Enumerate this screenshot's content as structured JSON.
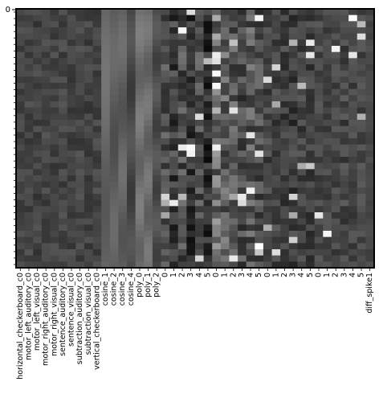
{
  "chart_data": {
    "type": "heatmap",
    "title": "",
    "xlabel": "",
    "ylabel": "",
    "colormap": "gray",
    "y_tick_labels": [
      "0"
    ],
    "y_minor_tick_count": 40,
    "x": [
      "horizontal_checkerboard_c0",
      "motor_left_auditory_c0",
      "motor_left_visual_c0",
      "motor_right_auditory_c0",
      "motor_right_visual_c0",
      "sentence_auditory_c0",
      "sentence_visual_c0",
      "subtraction_auditory_c0",
      "subtraction_visual_c0",
      "vertical_checkerboard_c0",
      "cosine_1",
      "cosine_2",
      "cosine_3",
      "cosine_4",
      "poly_0",
      "poly_1",
      "poly_2",
      "0",
      "1",
      "2",
      "3",
      "4",
      "5",
      "0",
      "1",
      "2",
      "3",
      "4",
      "5",
      "0",
      "1",
      "2",
      "3",
      "4",
      "5",
      "0",
      "1",
      "2",
      "3",
      "4",
      "5",
      "diff_spike1"
    ],
    "column_profile": [
      {
        "base": 0.26,
        "amp": 0.07,
        "spike": 0.0
      },
      {
        "base": 0.27,
        "amp": 0.07,
        "spike": 0.0
      },
      {
        "base": 0.26,
        "amp": 0.07,
        "spike": 0.0
      },
      {
        "base": 0.27,
        "amp": 0.07,
        "spike": 0.0
      },
      {
        "base": 0.26,
        "amp": 0.07,
        "spike": 0.0
      },
      {
        "base": 0.27,
        "amp": 0.07,
        "spike": 0.0
      },
      {
        "base": 0.26,
        "amp": 0.07,
        "spike": 0.0
      },
      {
        "base": 0.27,
        "amp": 0.07,
        "spike": 0.0
      },
      {
        "base": 0.26,
        "amp": 0.07,
        "spike": 0.0
      },
      {
        "base": 0.27,
        "amp": 0.07,
        "spike": 0.0
      },
      {
        "base": 0.4,
        "amp": 0.03,
        "spike": 0.0
      },
      {
        "base": 0.36,
        "amp": 0.03,
        "spike": 0.0
      },
      {
        "base": 0.38,
        "amp": 0.03,
        "spike": 0.0
      },
      {
        "base": 0.28,
        "amp": 0.03,
        "spike": 0.0
      },
      {
        "base": 0.44,
        "amp": 0.03,
        "spike": 0.0
      },
      {
        "base": 0.42,
        "amp": 0.03,
        "spike": 0.0
      },
      {
        "base": 0.3,
        "amp": 0.03,
        "spike": 0.0
      },
      {
        "base": 0.32,
        "amp": 0.14,
        "spike": 0.05
      },
      {
        "base": 0.25,
        "amp": 0.16,
        "spike": 0.05
      },
      {
        "base": 0.3,
        "amp": 0.16,
        "spike": 0.05
      },
      {
        "base": 0.2,
        "amp": 0.14,
        "spike": 0.05
      },
      {
        "base": 0.3,
        "amp": 0.16,
        "spike": 0.05
      },
      {
        "base": 0.18,
        "amp": 0.14,
        "spike": 0.05
      },
      {
        "base": 0.42,
        "amp": 0.2,
        "spike": 0.08
      },
      {
        "base": 0.38,
        "amp": 0.18,
        "spike": 0.08
      },
      {
        "base": 0.34,
        "amp": 0.16,
        "spike": 0.08
      },
      {
        "base": 0.3,
        "amp": 0.15,
        "spike": 0.08
      },
      {
        "base": 0.34,
        "amp": 0.16,
        "spike": 0.08
      },
      {
        "base": 0.3,
        "amp": 0.14,
        "spike": 0.08
      },
      {
        "base": 0.27,
        "amp": 0.1,
        "spike": 0.06
      },
      {
        "base": 0.26,
        "amp": 0.1,
        "spike": 0.06
      },
      {
        "base": 0.25,
        "amp": 0.1,
        "spike": 0.06
      },
      {
        "base": 0.24,
        "amp": 0.12,
        "spike": 0.08
      },
      {
        "base": 0.26,
        "amp": 0.1,
        "spike": 0.06
      },
      {
        "base": 0.25,
        "amp": 0.1,
        "spike": 0.06
      },
      {
        "base": 0.28,
        "amp": 0.08,
        "spike": 0.05
      },
      {
        "base": 0.27,
        "amp": 0.08,
        "spike": 0.05
      },
      {
        "base": 0.27,
        "amp": 0.08,
        "spike": 0.05
      },
      {
        "base": 0.27,
        "amp": 0.1,
        "spike": 0.08
      },
      {
        "base": 0.27,
        "amp": 0.08,
        "spike": 0.05
      },
      {
        "base": 0.28,
        "amp": 0.08,
        "spike": 0.05
      },
      {
        "base": 0.28,
        "amp": 0.04,
        "spike": 0.0
      }
    ],
    "row_count": 42,
    "grid": false,
    "legend": "none"
  }
}
